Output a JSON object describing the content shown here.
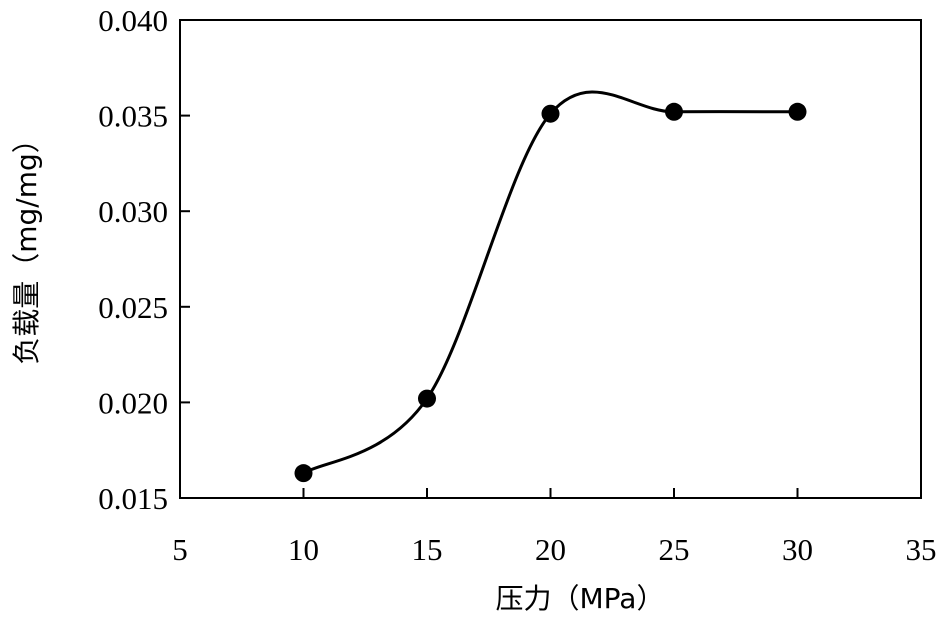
{
  "chart_data": {
    "type": "line",
    "title": "",
    "xlabel": "压力（MPa）",
    "ylabel": "负载量（mg/mg）",
    "xlim": [
      5,
      35
    ],
    "ylim": [
      0.015,
      0.04
    ],
    "x_ticks": [
      "5",
      "10",
      "15",
      "20",
      "25",
      "30",
      "35"
    ],
    "y_ticks": [
      "0.015",
      "0.020",
      "0.025",
      "0.030",
      "0.035",
      "0.040"
    ],
    "grid": false,
    "legend": "none",
    "smooth": true,
    "marker": "circle",
    "line_color": "#000000",
    "series": [
      {
        "x": [
          10,
          15,
          20,
          25,
          30
        ],
        "y": [
          0.0163,
          0.0202,
          0.0351,
          0.0352,
          0.0352
        ]
      }
    ]
  }
}
